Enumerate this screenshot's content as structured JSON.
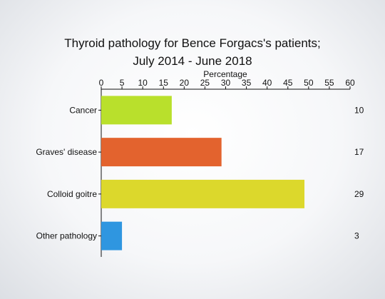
{
  "chart_data": {
    "type": "bar",
    "orientation": "horizontal",
    "title_line1": "Thyroid pathology for Bence Forgacs's patients;",
    "title_line2": "July 2014 - June 2018",
    "xlabel": "Percentage",
    "xlim": [
      0,
      60
    ],
    "xticks": [
      0,
      5,
      10,
      15,
      20,
      25,
      30,
      35,
      40,
      45,
      50,
      55,
      60
    ],
    "categories": [
      "Cancer",
      "Graves' disease",
      "Colloid goitre",
      "Other pathology"
    ],
    "values": [
      17,
      29,
      49,
      5
    ],
    "counts": [
      "10",
      "17",
      "29",
      "3"
    ],
    "colors": [
      "#b9e02c",
      "#e3632e",
      "#dcd82c",
      "#2f96e0"
    ],
    "grid": false,
    "legend": "none"
  }
}
